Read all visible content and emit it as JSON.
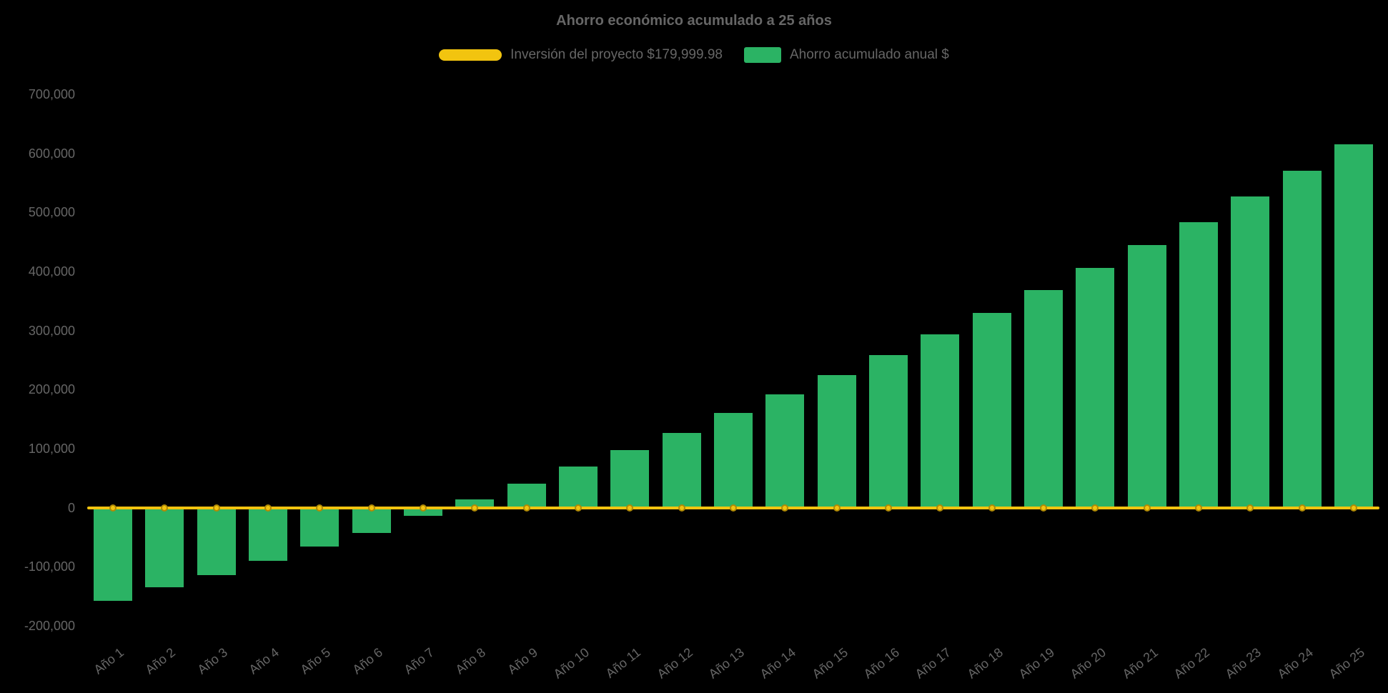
{
  "chart_data": {
    "type": "bar",
    "title": "Ahorro económico acumulado a 25 años",
    "categories": [
      "Año 1",
      "Año 2",
      "Año 3",
      "Año 4",
      "Año 5",
      "Año 6",
      "Año 7",
      "Año 8",
      "Año 9",
      "Año 10",
      "Año 11",
      "Año 12",
      "Año 13",
      "Año 14",
      "Año 15",
      "Año 16",
      "Año 17",
      "Año 18",
      "Año 19",
      "Año 20",
      "Año 21",
      "Año 22",
      "Año 23",
      "Año 24",
      "Año 25"
    ],
    "series": [
      {
        "name": "Inversión del proyecto $179,999.98",
        "type": "line",
        "color": "#F2C40F",
        "values": [
          0,
          0,
          0,
          0,
          0,
          0,
          0,
          0,
          0,
          0,
          0,
          0,
          0,
          0,
          0,
          0,
          0,
          0,
          0,
          0,
          0,
          0,
          0,
          0,
          0
        ]
      },
      {
        "name": "Ahorro acumulado anual $",
        "type": "bar",
        "color": "#2BB364",
        "values": [
          -158000,
          -135000,
          -114000,
          -90000,
          -66000,
          -43000,
          -14000,
          14000,
          41000,
          70000,
          98000,
          127000,
          160000,
          192000,
          224000,
          258000,
          294000,
          330000,
          368000,
          406000,
          445000,
          484000,
          527000,
          570000,
          615000
        ]
      }
    ],
    "ylim": [
      -200000,
      700000
    ],
    "ytick_step": 100000,
    "yticks": [
      "700,000",
      "600,000",
      "500,000",
      "400,000",
      "300,000",
      "200,000",
      "100,000",
      "0",
      "-100,000",
      "-200,000"
    ],
    "grid": false,
    "legend_position": "top",
    "background_color": "#000000",
    "text_color": "#666666"
  }
}
